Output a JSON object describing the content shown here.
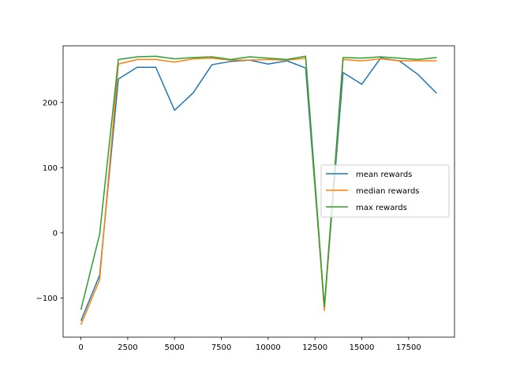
{
  "chart_data": {
    "type": "line",
    "title": "",
    "xlabel": "",
    "ylabel": "",
    "xlim": [
      -950,
      19950
    ],
    "ylim": [
      -160,
      287
    ],
    "xticks": [
      0,
      2500,
      5000,
      7500,
      10000,
      12500,
      15000,
      17500
    ],
    "xtick_labels": [
      "0",
      "2500",
      "5000",
      "7500",
      "10000",
      "12500",
      "15000",
      "17500"
    ],
    "yticks": [
      -100,
      0,
      100,
      200
    ],
    "ytick_labels": [
      "−100",
      "0",
      "100",
      "200"
    ],
    "grid": false,
    "legend_position": "center-right",
    "x": [
      0,
      1000,
      2000,
      3000,
      4000,
      5000,
      6000,
      7000,
      8000,
      9000,
      10000,
      11000,
      12000,
      13000,
      14000,
      15000,
      16000,
      17000,
      18000,
      19000
    ],
    "series": [
      {
        "name": "mean rewards",
        "color": "#1f77b4",
        "values": [
          -135,
          -65,
          236,
          254,
          254,
          188,
          215,
          258,
          263,
          265,
          259,
          264,
          253,
          -115,
          246,
          228,
          268,
          264,
          243,
          214
        ]
      },
      {
        "name": "median rewards",
        "color": "#ff7f0e",
        "values": [
          -141,
          -72,
          259,
          266,
          266,
          262,
          267,
          268,
          265,
          265,
          266,
          265,
          268,
          -119,
          266,
          264,
          267,
          264,
          264,
          264
        ]
      },
      {
        "name": "max rewards",
        "color": "#2ca02c",
        "values": [
          -118,
          -2,
          266,
          270,
          271,
          267,
          269,
          270,
          266,
          270,
          268,
          266,
          271,
          -113,
          269,
          268,
          270,
          268,
          266,
          269
        ]
      }
    ]
  }
}
